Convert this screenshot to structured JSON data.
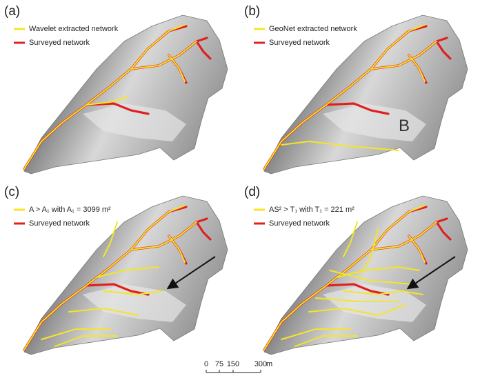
{
  "panels": [
    {
      "label": "(a)",
      "legend": [
        "Wavelet extracted network",
        "Surveyed network"
      ]
    },
    {
      "label": "(b)",
      "legend": [
        "GeoNet extracted network",
        "Surveyed network"
      ],
      "annotation": "B"
    },
    {
      "label": "(c)",
      "legend": [
        "A > A₁ with A₁ = 3099 m²",
        "Surveyed network"
      ]
    },
    {
      "label": "(d)",
      "legend": [
        "AS² > T₁ with T₁ = 221 m²",
        "Surveyed network"
      ]
    }
  ],
  "scale_bar": {
    "labels": [
      "0",
      "75",
      "150",
      "300"
    ],
    "unit": "m"
  }
}
